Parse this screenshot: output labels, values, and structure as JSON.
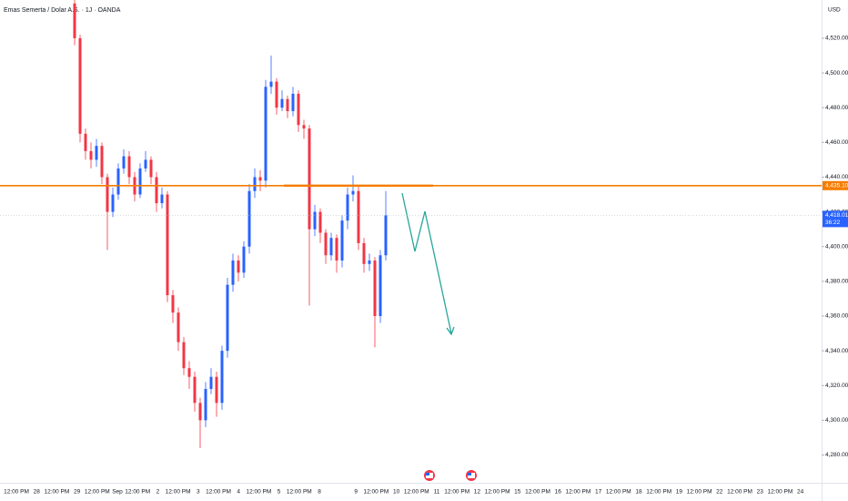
{
  "chart_data": {
    "type": "candlestick",
    "title": "Emas Semerta / Dolar A.S. · 1J · OANDA",
    "currency": "USD",
    "up_color": "#2962ff",
    "down_color": "#f23645",
    "open": [
      4540,
      4520,
      4465,
      4455,
      4450,
      4458,
      4440,
      4420,
      4430,
      4445,
      4452,
      4440,
      4430,
      4445,
      4450,
      4440,
      4425,
      4430,
      4372,
      4362,
      4345,
      4330,
      4325,
      4310,
      4300,
      4318,
      4325,
      4310,
      4340,
      4378,
      4392,
      4385,
      4400,
      4432,
      4440,
      4438,
      4492,
      4495,
      4480,
      4485,
      4478,
      4488,
      4470,
      4468,
      4410,
      4420,
      4408,
      4395,
      4405,
      4392,
      4415,
      4430,
      4432,
      4402,
      4390,
      4392,
      4360,
      4395
    ],
    "high": [
      4545,
      4522,
      4468,
      4460,
      4462,
      4460,
      4442,
      4434,
      4448,
      4456,
      4455,
      4443,
      4448,
      4455,
      4452,
      4443,
      4434,
      4432,
      4375,
      4365,
      4348,
      4334,
      4328,
      4313,
      4322,
      4330,
      4328,
      4343,
      4382,
      4396,
      4395,
      4403,
      4436,
      4445,
      4444,
      4496,
      4510,
      4497,
      4490,
      4487,
      4492,
      4490,
      4473,
      4470,
      4424,
      4422,
      4410,
      4408,
      4407,
      4418,
      4434,
      4441,
      4435,
      4405,
      4396,
      4394,
      4398,
      4432
    ],
    "low": [
      4516,
      4460,
      4450,
      4445,
      4446,
      4436,
      4398,
      4417,
      4427,
      4442,
      4436,
      4426,
      4428,
      4443,
      4436,
      4420,
      4422,
      4368,
      4356,
      4340,
      4326,
      4318,
      4305,
      4284,
      4296,
      4315,
      4302,
      4306,
      4336,
      4374,
      4380,
      4382,
      4396,
      4428,
      4432,
      4434,
      4488,
      4476,
      4478,
      4474,
      4475,
      4466,
      4462,
      4366,
      4406,
      4402,
      4390,
      4392,
      4385,
      4388,
      4410,
      4426,
      4398,
      4385,
      4386,
      4342,
      4356,
      4392
    ],
    "close": [
      4520,
      4465,
      4455,
      4450,
      4458,
      4440,
      4420,
      4430,
      4445,
      4452,
      4440,
      4430,
      4445,
      4450,
      4440,
      4425,
      4430,
      4372,
      4362,
      4345,
      4330,
      4325,
      4310,
      4300,
      4318,
      4325,
      4310,
      4340,
      4378,
      4392,
      4385,
      4400,
      4432,
      4440,
      4438,
      4492,
      4495,
      4480,
      4485,
      4478,
      4488,
      4470,
      4468,
      4410,
      4420,
      4408,
      4395,
      4405,
      4392,
      4415,
      4430,
      4432,
      4402,
      4390,
      4392,
      4360,
      4395,
      4418.015
    ],
    "ylim": [
      4264,
      4542
    ],
    "yticks": [
      {
        "value": 4280,
        "label": "4,280.000"
      },
      {
        "value": 4300,
        "label": "4,300.000"
      },
      {
        "value": 4320,
        "label": "4,320.000"
      },
      {
        "value": 4340,
        "label": "4,340.000"
      },
      {
        "value": 4360,
        "label": "4,360.000"
      },
      {
        "value": 4380,
        "label": "4,380.000"
      },
      {
        "value": 4400,
        "label": "4,400.000"
      },
      {
        "value": 4420,
        "label": "4,420.000"
      },
      {
        "value": 4440,
        "label": "4,440.000"
      },
      {
        "value": 4460,
        "label": "4,460.000"
      },
      {
        "value": 4480,
        "label": "4,480.000"
      },
      {
        "value": 4500,
        "label": "4,500.000"
      },
      {
        "value": 4520,
        "label": "4,520.000"
      }
    ],
    "horizontal_level": {
      "value": 4435.1,
      "label": "4,435.100",
      "color": "#f57c00"
    },
    "last_price": {
      "value": 4418.015,
      "label": "4,418.015",
      "countdown": "36:22"
    },
    "x_labels": [
      "12:00 PM",
      "28",
      "12:00 PM",
      "29",
      "12:00 PM",
      "Sep",
      "12:00 PM",
      "2",
      "12:00 PM",
      "3",
      "12:00 PM",
      "4",
      "12:00 PM",
      "5",
      "12:00 PM",
      "8",
      "9",
      "12:00 PM",
      "10",
      "12:00 PM",
      "11",
      "12:00 PM",
      "12",
      "12:00 PM",
      "15",
      "12:00 PM",
      "16",
      "12:00 PM",
      "17",
      "12:00 PM",
      "18",
      "12:00 PM",
      "19",
      "12:00 PM",
      "22",
      "12:00 PM",
      "23",
      "12:00 PM",
      "24"
    ],
    "grid": false
  }
}
